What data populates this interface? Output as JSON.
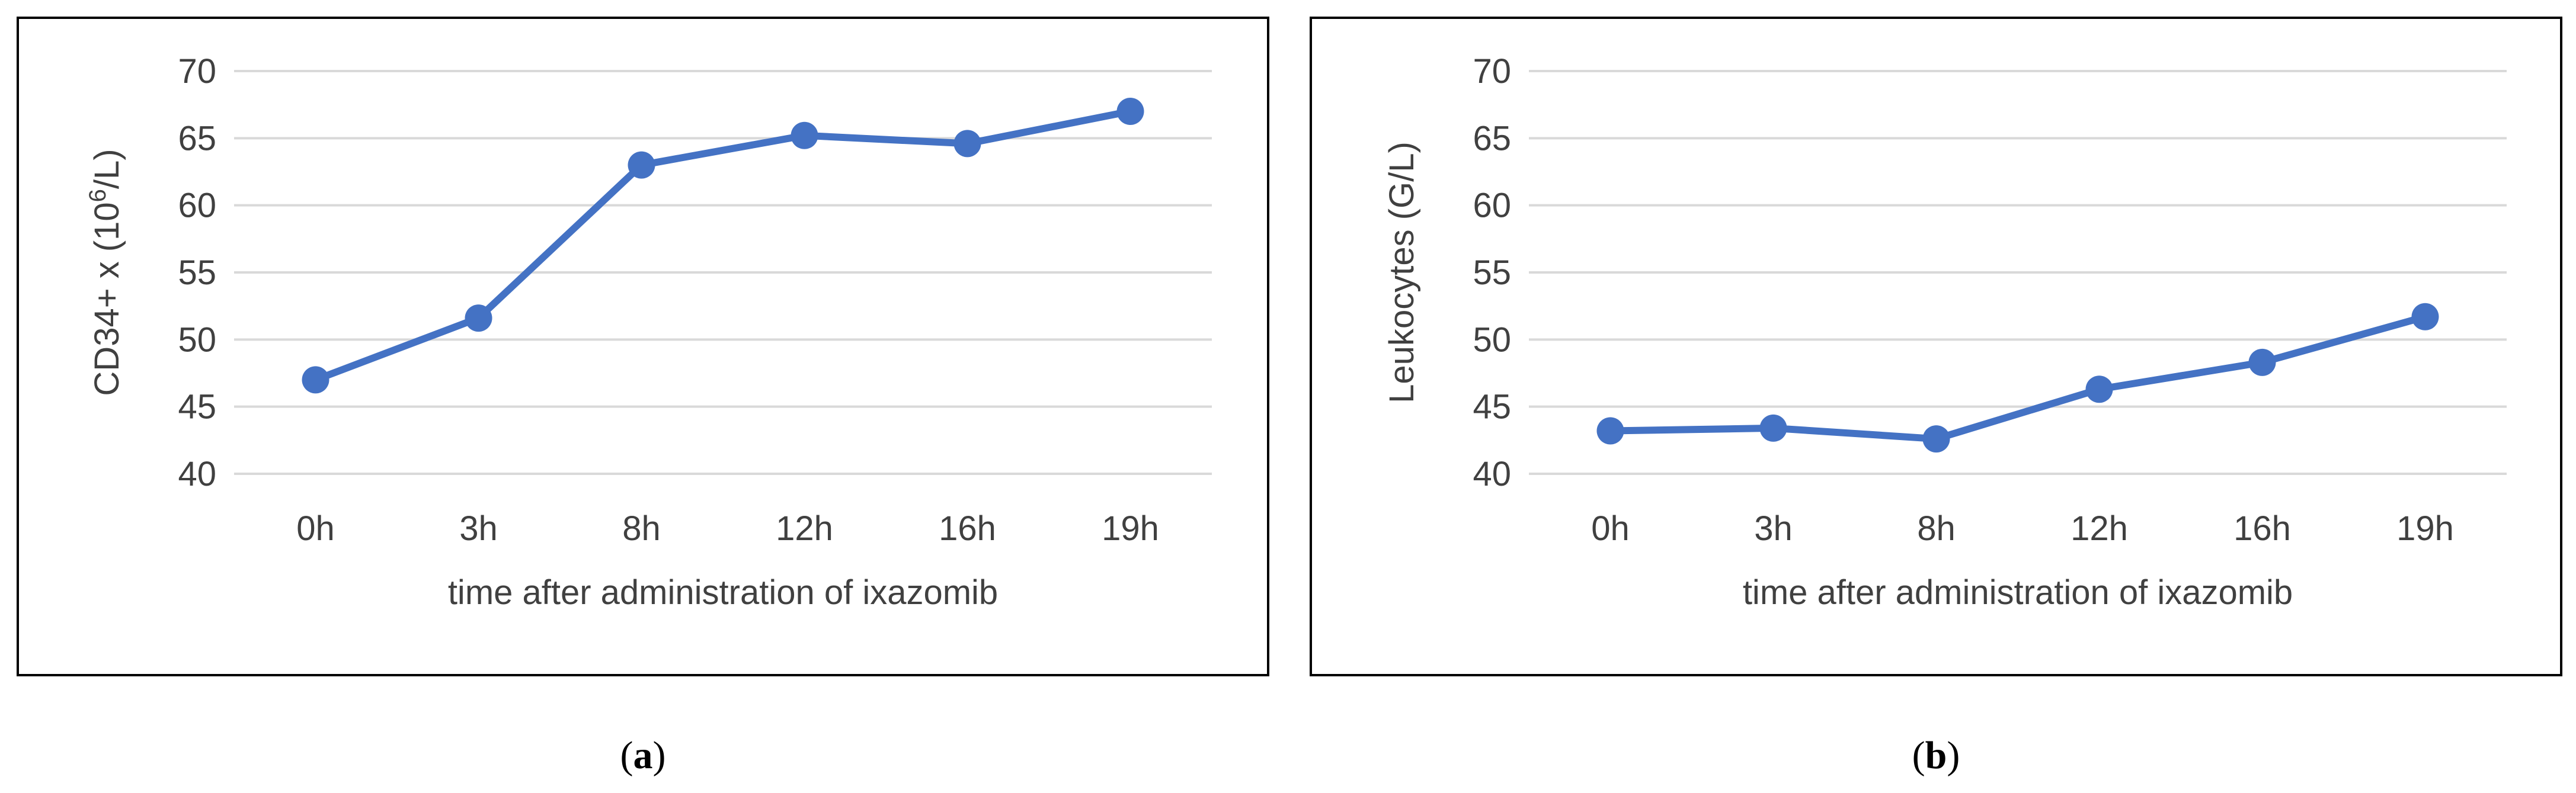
{
  "chart_data": [
    {
      "type": "line",
      "categories": [
        "0h",
        "3h",
        "8h",
        "12h",
        "16h",
        "19h"
      ],
      "values": [
        47.0,
        51.6,
        63.0,
        65.2,
        64.6,
        67.0
      ],
      "xlabel": "time after administration of ixazomib",
      "ylabel_main": "CD34+ x (10",
      "ylabel_sup": "6",
      "ylabel_end": "/L)",
      "ylim": [
        40,
        70
      ],
      "yticks": [
        40,
        45,
        50,
        55,
        60,
        65,
        70
      ],
      "grid": true,
      "color": "#4472C4",
      "caption_letter": "a"
    },
    {
      "type": "line",
      "categories": [
        "0h",
        "3h",
        "8h",
        "12h",
        "16h",
        "19h"
      ],
      "values": [
        43.2,
        43.4,
        42.6,
        46.3,
        48.3,
        51.7
      ],
      "xlabel": "time after administration of ixazomib",
      "ylabel_main": "Leukocytes (G/L)",
      "ylabel_sup": "",
      "ylabel_end": "",
      "ylim": [
        40,
        70
      ],
      "yticks": [
        40,
        45,
        50,
        55,
        60,
        65,
        70
      ],
      "grid": true,
      "color": "#4472C4",
      "caption_letter": "b"
    }
  ]
}
